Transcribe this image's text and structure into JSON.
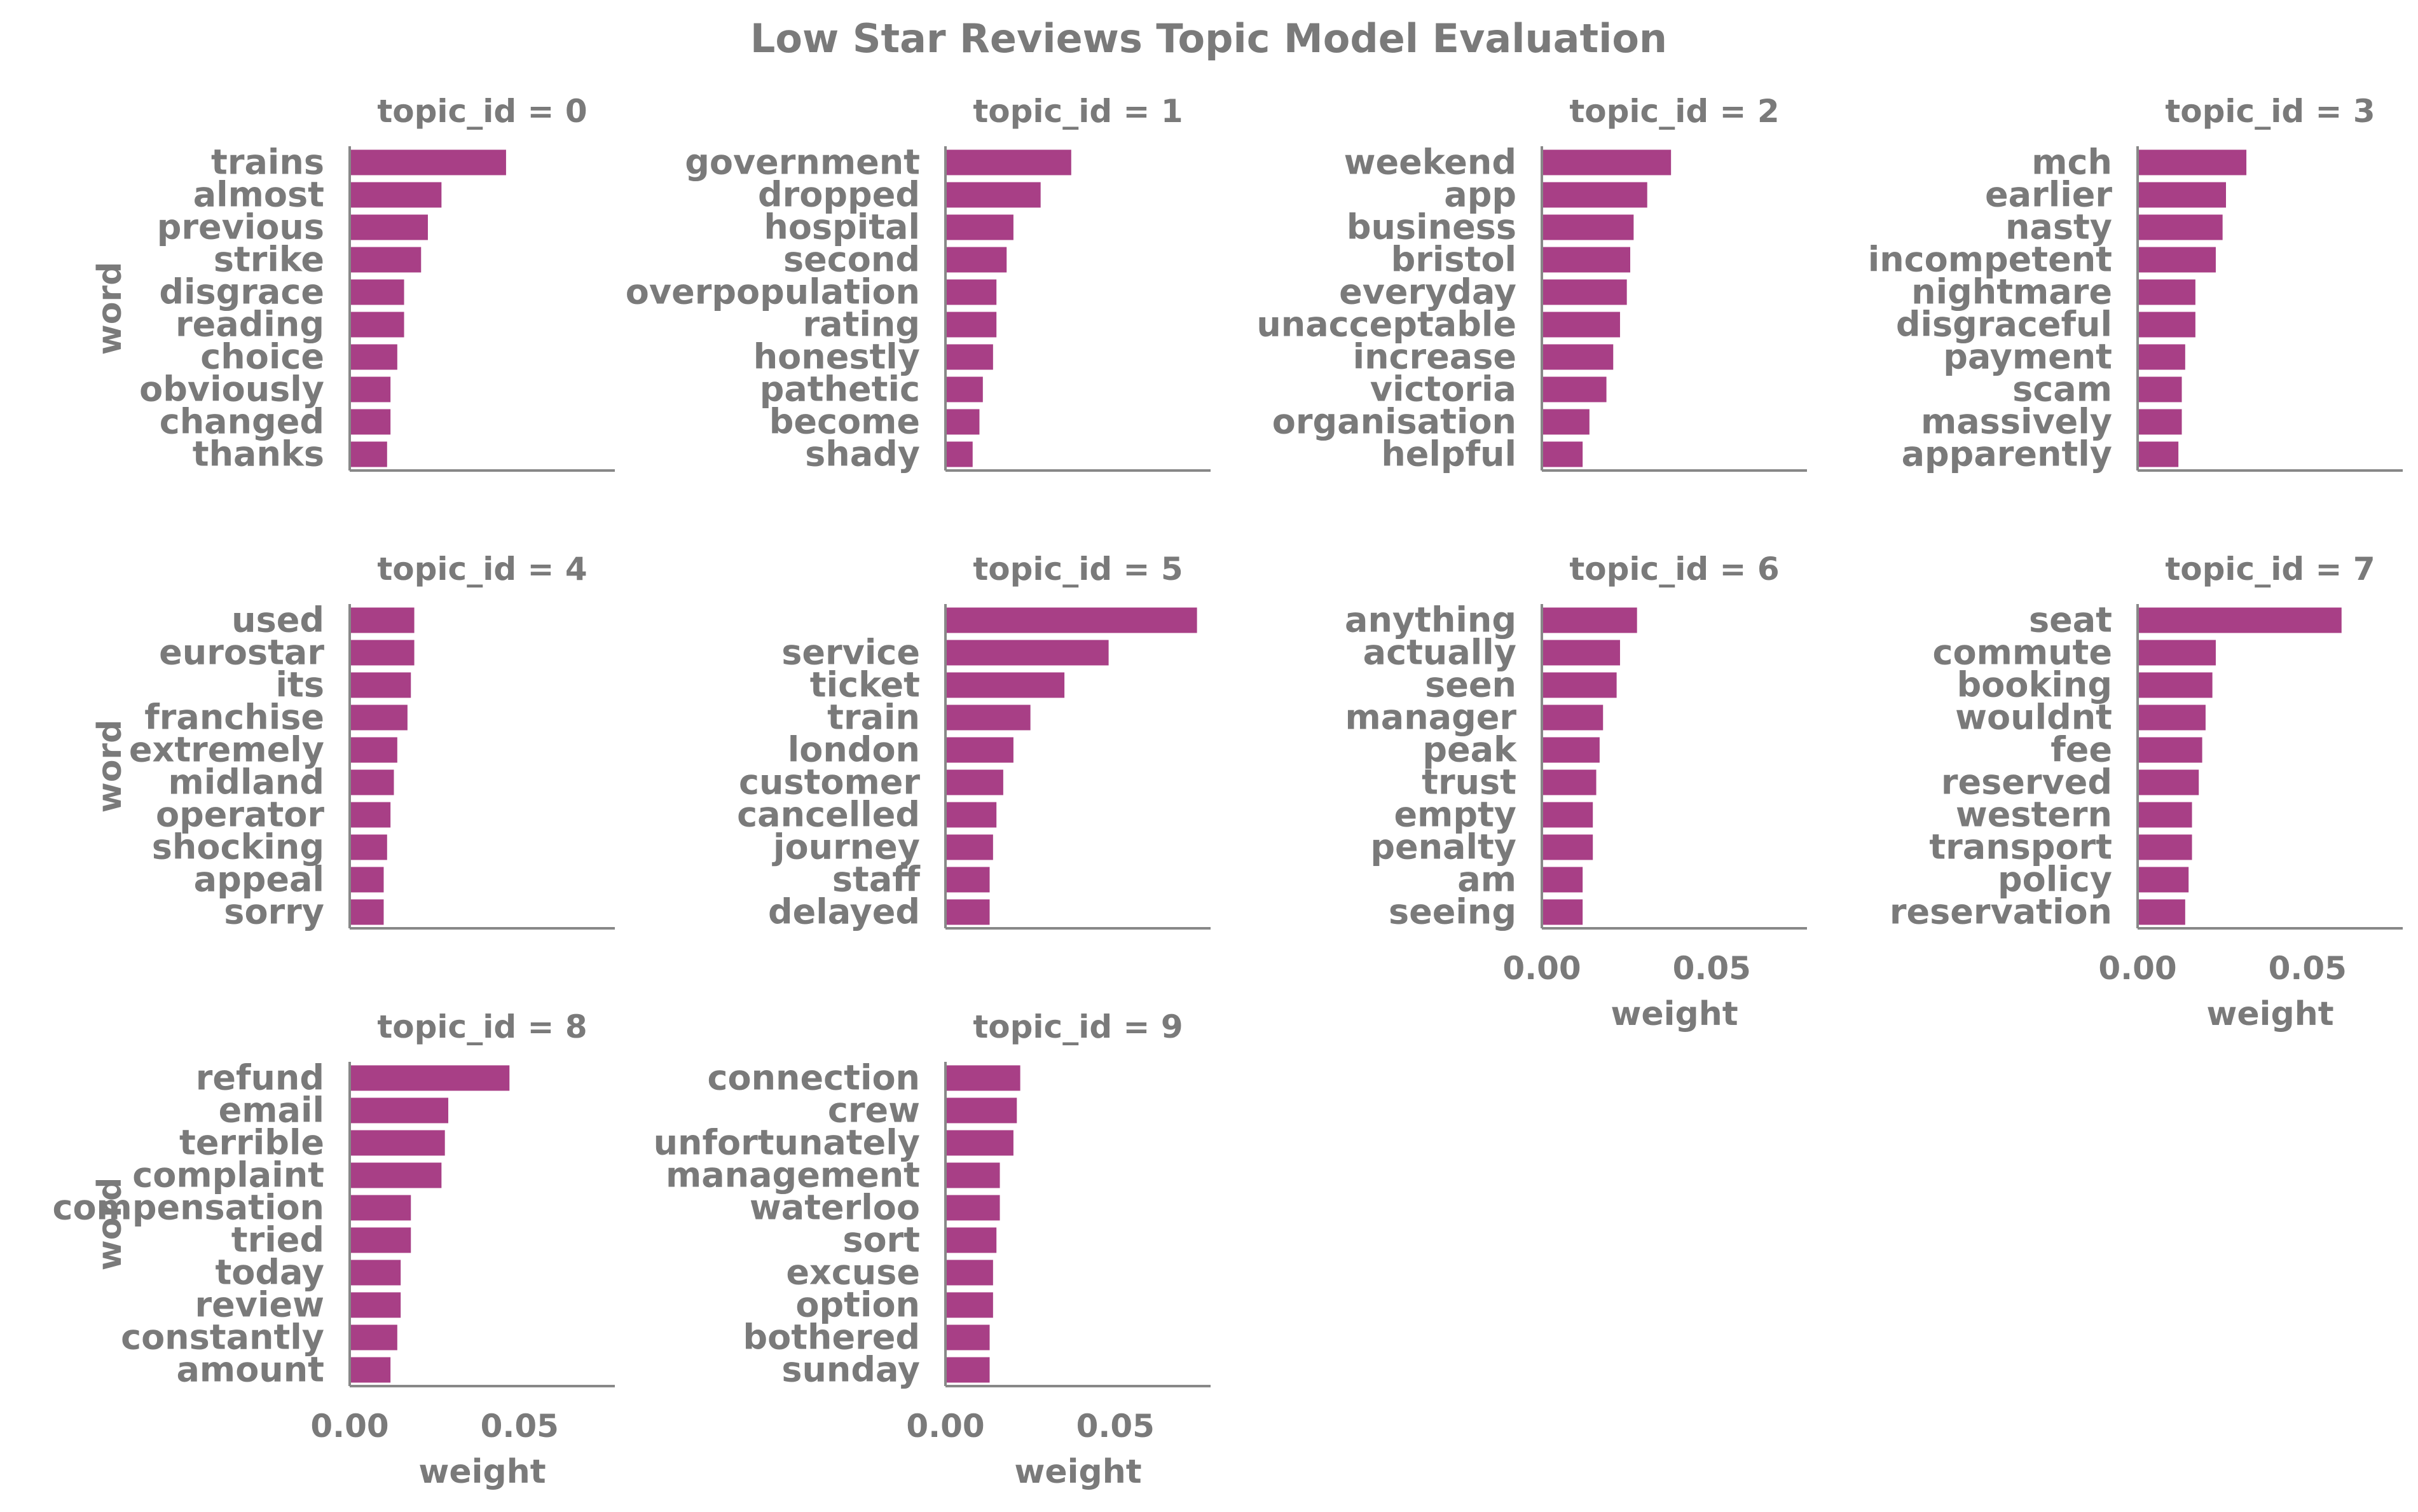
{
  "title": "Low Star Reviews Topic Model Evaluation",
  "colors": {
    "bar": "#a83f86",
    "text": "#7a7a7a",
    "axis": "#888888"
  },
  "chart_data": {
    "type": "bar",
    "orientation": "horizontal",
    "facet_layout": {
      "columns": 4,
      "rows": 3,
      "facet_label_prefix": "topic_id = "
    },
    "xlabel": "weight",
    "ylabel": "word",
    "xlim": [
      0.0,
      0.078
    ],
    "xticks": [
      0.0,
      0.05
    ],
    "xtick_labels": [
      "0.00",
      "0.05"
    ],
    "grid": false,
    "facets": [
      {
        "topic_id": 0,
        "title": "topic_id = 0",
        "words": [
          "trains",
          "almost",
          "previous",
          "strike",
          "disgrace",
          "reading",
          "choice",
          "obviously",
          "changed",
          "thanks"
        ],
        "weights": [
          0.046,
          0.027,
          0.023,
          0.021,
          0.016,
          0.016,
          0.014,
          0.012,
          0.012,
          0.011
        ]
      },
      {
        "topic_id": 1,
        "title": "topic_id = 1",
        "words": [
          "government",
          "dropped",
          "hospital",
          "second",
          "overpopulation",
          "rating",
          "honestly",
          "pathetic",
          "become",
          "shady"
        ],
        "weights": [
          0.037,
          0.028,
          0.02,
          0.018,
          0.015,
          0.015,
          0.014,
          0.011,
          0.01,
          0.008
        ]
      },
      {
        "topic_id": 2,
        "title": "topic_id = 2",
        "words": [
          "weekend",
          "app",
          "business",
          "bristol",
          "everyday",
          "unacceptable",
          "increase",
          "victoria",
          "organisation",
          "helpful"
        ],
        "weights": [
          0.038,
          0.031,
          0.027,
          0.026,
          0.025,
          0.023,
          0.021,
          0.019,
          0.014,
          0.012
        ]
      },
      {
        "topic_id": 3,
        "title": "topic_id = 3",
        "words": [
          "mch",
          "earlier",
          "nasty",
          "incompetent",
          "nightmare",
          "disgraceful",
          "payment",
          "scam",
          "massively",
          "apparently"
        ],
        "weights": [
          0.032,
          0.026,
          0.025,
          0.023,
          0.017,
          0.017,
          0.014,
          0.013,
          0.013,
          0.012
        ]
      },
      {
        "topic_id": 4,
        "title": "topic_id = 4",
        "words": [
          "used",
          "eurostar",
          "its",
          "franchise",
          "extremely",
          "midland",
          "operator",
          "shocking",
          "appeal",
          "sorry"
        ],
        "weights": [
          0.019,
          0.019,
          0.018,
          0.017,
          0.014,
          0.013,
          0.012,
          0.011,
          0.01,
          0.01
        ]
      },
      {
        "topic_id": 5,
        "title": "topic_id = 5",
        "words": [
          "",
          "service",
          "ticket",
          "train",
          "london",
          "customer",
          "cancelled",
          "journey",
          "staff",
          "delayed"
        ],
        "weights": [
          0.074,
          0.048,
          0.035,
          0.025,
          0.02,
          0.017,
          0.015,
          0.014,
          0.013,
          0.013
        ]
      },
      {
        "topic_id": 6,
        "title": "topic_id = 6",
        "words": [
          "anything",
          "actually",
          "seen",
          "manager",
          "peak",
          "trust",
          "empty",
          "penalty",
          "am",
          "seeing"
        ],
        "weights": [
          0.028,
          0.023,
          0.022,
          0.018,
          0.017,
          0.016,
          0.015,
          0.015,
          0.012,
          0.012
        ]
      },
      {
        "topic_id": 7,
        "title": "topic_id = 7",
        "words": [
          "seat",
          "commute",
          "booking",
          "wouldnt",
          "fee",
          "reserved",
          "western",
          "transport",
          "policy",
          "reservation"
        ],
        "weights": [
          0.06,
          0.023,
          0.022,
          0.02,
          0.019,
          0.018,
          0.016,
          0.016,
          0.015,
          0.014
        ]
      },
      {
        "topic_id": 8,
        "title": "topic_id = 8",
        "words": [
          "refund",
          "email",
          "terrible",
          "complaint",
          "compensation",
          "tried",
          "today",
          "review",
          "constantly",
          "amount"
        ],
        "weights": [
          0.047,
          0.029,
          0.028,
          0.027,
          0.018,
          0.018,
          0.015,
          0.015,
          0.014,
          0.012
        ]
      },
      {
        "topic_id": 9,
        "title": "topic_id = 9",
        "words": [
          "connection",
          "crew",
          "unfortunately",
          "management",
          "waterloo",
          "sort",
          "excuse",
          "option",
          "bothered",
          "sunday"
        ],
        "weights": [
          0.022,
          0.021,
          0.02,
          0.016,
          0.016,
          0.015,
          0.014,
          0.014,
          0.013,
          0.013
        ]
      }
    ]
  }
}
